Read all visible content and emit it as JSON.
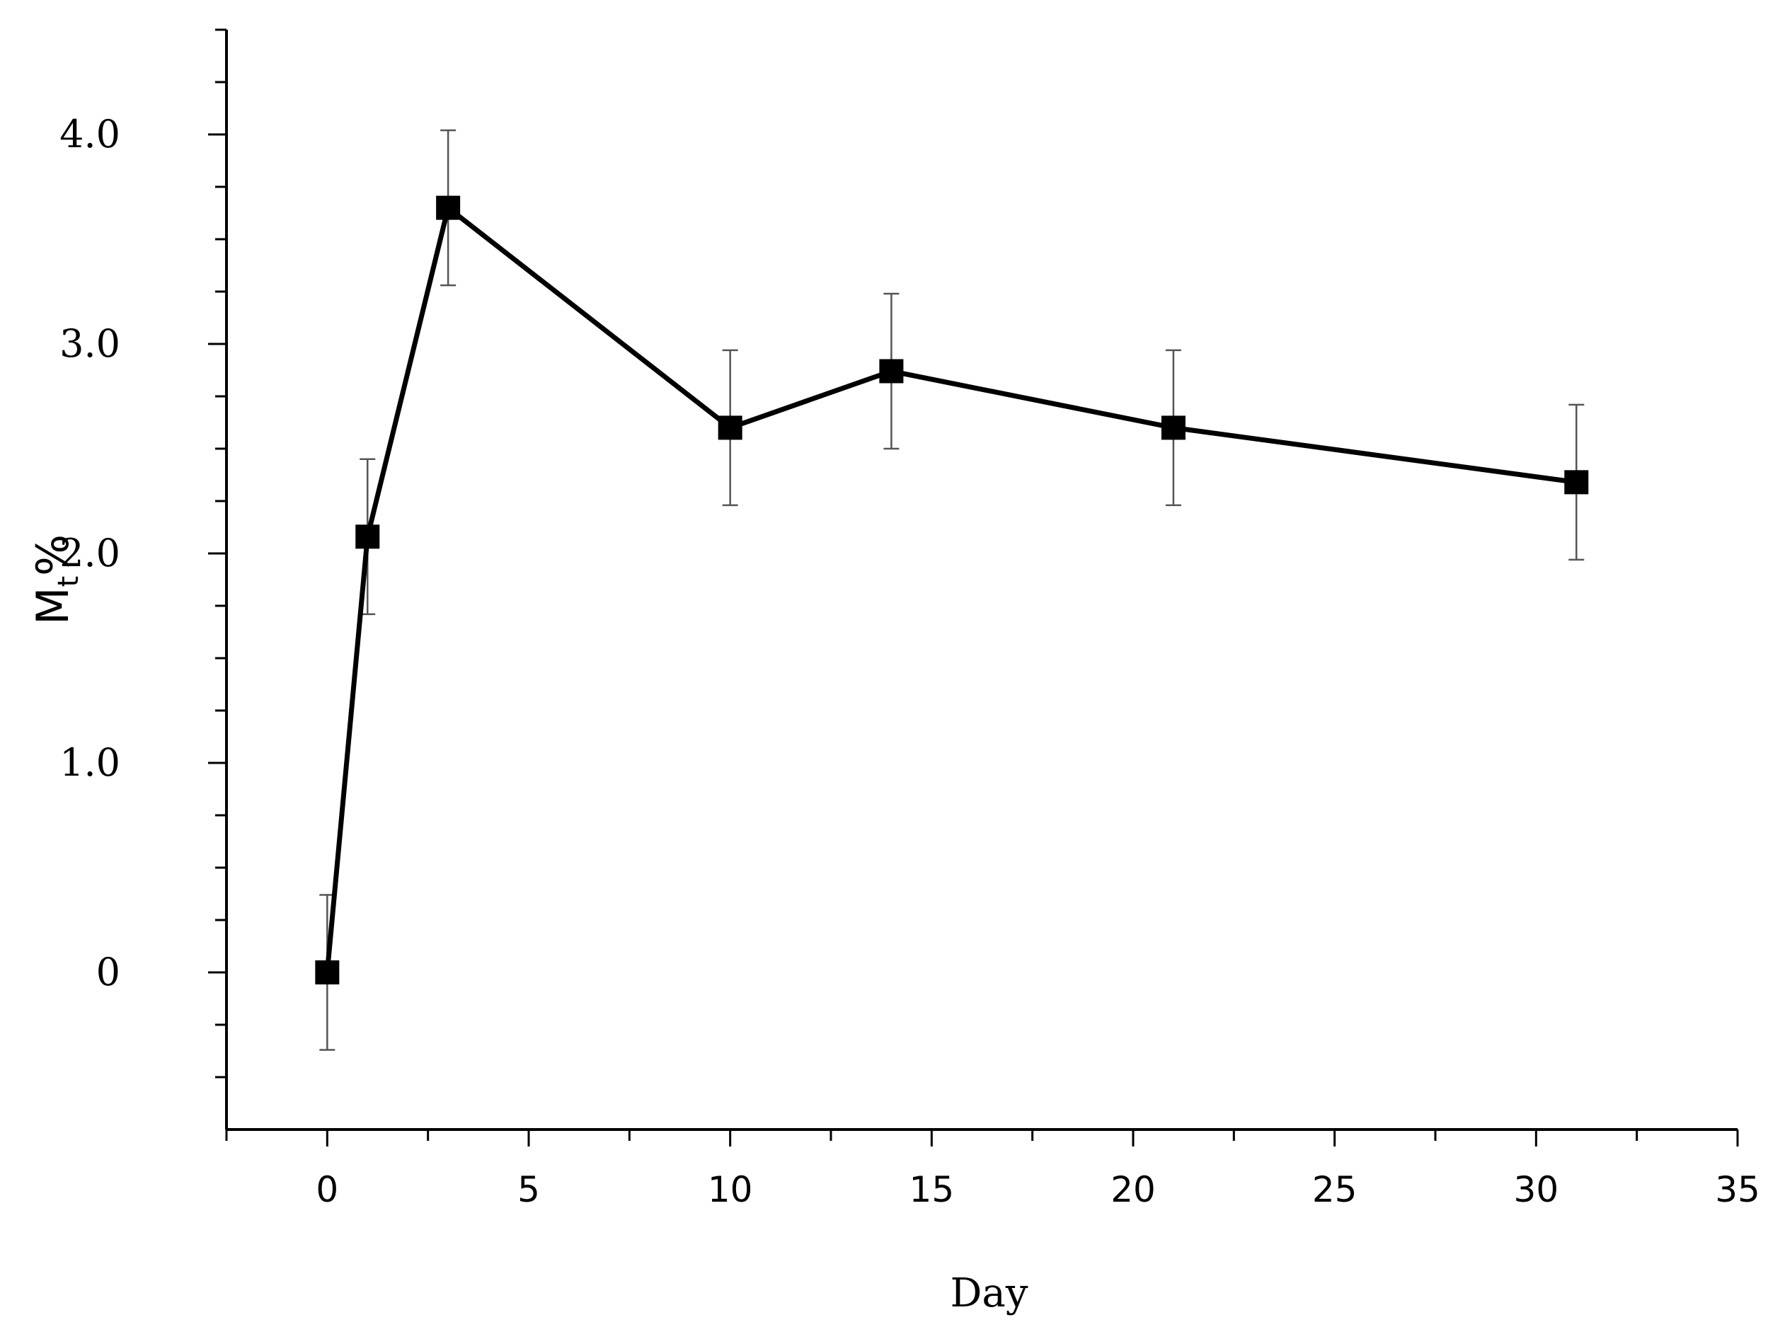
{
  "chart_data": {
    "type": "line",
    "title": "",
    "xlabel": "Day",
    "ylabel_main": "M",
    "ylabel_sub": "t",
    "ylabel_suffix": "%",
    "xlim": [
      -2.5,
      35
    ],
    "ylim": [
      -0.75,
      4.5
    ],
    "x_ticks": [
      0,
      5,
      10,
      15,
      20,
      25,
      30,
      35
    ],
    "x_tick_labels": [
      "0",
      "5",
      "10",
      "15",
      "20",
      "25",
      "30",
      "35"
    ],
    "x_minor_ticks": [
      -2.5,
      2.5,
      7.5,
      12.5,
      17.5,
      22.5,
      27.5,
      32.5
    ],
    "y_ticks": [
      0,
      1.0,
      2.0,
      3.0,
      4.0
    ],
    "y_tick_labels": [
      "0",
      "1.0",
      "2.0",
      "3.0",
      "4.0"
    ],
    "y_minor_ticks": [
      -0.5,
      -0.25,
      0.25,
      0.5,
      0.75,
      1.25,
      1.5,
      1.75,
      2.25,
      2.5,
      2.75,
      3.25,
      3.5,
      3.75,
      4.25,
      4.5
    ],
    "grid": false,
    "series": [
      {
        "x": [
          0,
          1,
          3,
          10,
          14,
          21,
          31
        ],
        "y": [
          0.0,
          2.08,
          3.65,
          2.6,
          2.87,
          2.6,
          2.34
        ],
        "error": [
          0.37,
          0.37,
          0.37,
          0.37,
          0.37,
          0.37,
          0.37
        ],
        "color": "#000000",
        "marker": "square"
      }
    ]
  }
}
